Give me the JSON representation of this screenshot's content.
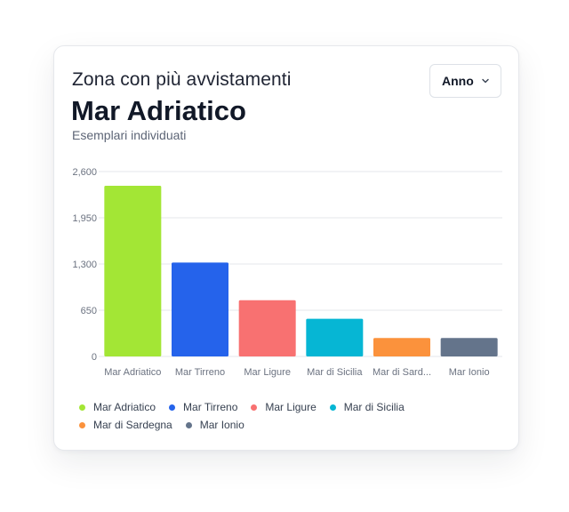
{
  "header": {
    "kicker": "Zona con più avvistamenti",
    "title": "Mar Adriatico",
    "subtitle": "Esemplari individuati"
  },
  "dropdown": {
    "label": "Anno",
    "icon": "chevron-down-icon"
  },
  "chart_data": {
    "type": "bar",
    "categories": [
      "Mar Adriatico",
      "Mar Tirreno",
      "Mar Ligure",
      "Mar di Sicilia",
      "Mar di Sardegna",
      "Mar Ionio"
    ],
    "category_tick_labels": [
      "Mar Adriatico",
      "Mar Tirreno",
      "Mar Ligure",
      "Mar di Sicilia",
      "Mar di Sard...",
      "Mar Ionio"
    ],
    "values": [
      2400,
      1320,
      790,
      530,
      260,
      260
    ],
    "colors": [
      "#a3e635",
      "#2563eb",
      "#f87171",
      "#06b6d4",
      "#fb923c",
      "#64748b"
    ],
    "y_ticks": [
      0,
      650,
      1300,
      1950,
      2600
    ],
    "y_tick_labels": [
      "0",
      "650",
      "1,300",
      "1,950",
      "2,600"
    ],
    "ylim": [
      0,
      2600
    ],
    "grid": true,
    "legend_position": "bottom",
    "xlabel": "",
    "ylabel": ""
  },
  "legend": [
    {
      "label": "Mar Adriatico",
      "color": "#a3e635"
    },
    {
      "label": "Mar Tirreno",
      "color": "#2563eb"
    },
    {
      "label": "Mar Ligure",
      "color": "#f87171"
    },
    {
      "label": "Mar di Sicilia",
      "color": "#06b6d4"
    },
    {
      "label": "Mar di Sardegna",
      "color": "#fb923c"
    },
    {
      "label": "Mar Ionio",
      "color": "#64748b"
    }
  ]
}
